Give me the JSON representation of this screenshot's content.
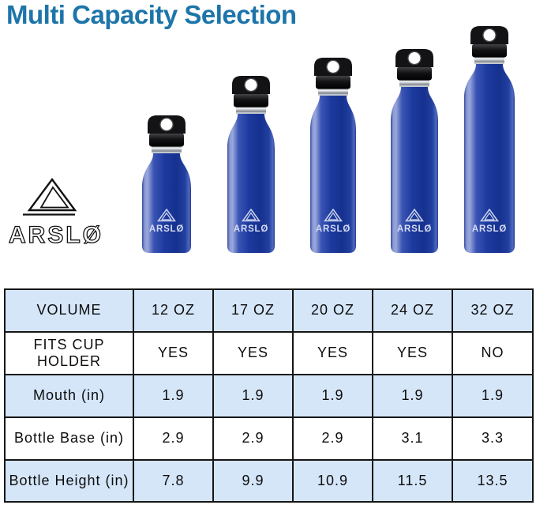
{
  "title": "Multi Capacity Selection",
  "brand": {
    "name": "ARSLØ",
    "logo": "triangle-mountain-icon"
  },
  "bottles": {
    "logo_text": "ARSLØ",
    "items": [
      {
        "volume": "12 OZ"
      },
      {
        "volume": "17 OZ"
      },
      {
        "volume": "20 OZ"
      },
      {
        "volume": "24 OZ"
      },
      {
        "volume": "32 OZ"
      }
    ]
  },
  "chart_data": {
    "type": "table",
    "title": "Multi Capacity Selection",
    "rows": [
      {
        "label": "VOLUME",
        "values": [
          "12 OZ",
          "17 OZ",
          "20 OZ",
          "24 OZ",
          "32 OZ"
        ]
      },
      {
        "label": "FITS CUP HOLDER",
        "values": [
          "YES",
          "YES",
          "YES",
          "YES",
          "NO"
        ]
      },
      {
        "label": "Mouth (in)",
        "values": [
          "1.9",
          "1.9",
          "1.9",
          "1.9",
          "1.9"
        ]
      },
      {
        "label": "Bottle Base (in)",
        "values": [
          "2.9",
          "2.9",
          "2.9",
          "3.1",
          "3.3"
        ]
      },
      {
        "label": "Bottle Height (in)",
        "values": [
          "7.8",
          "9.9",
          "10.9",
          "11.5",
          "13.5"
        ]
      }
    ],
    "layout_hints": {
      "alternating_row_fill": "light blue on rows 1,3,5",
      "grid": "on"
    }
  },
  "colors": {
    "title_text": "#1d75a9",
    "table_row_alt": "#d5e6f9",
    "table_border": "#161616",
    "bottle_blue_dark": "#16318f",
    "bottle_blue_light": "#99a7dc",
    "cap_black": "#0d0d0d",
    "steel_ring": "#c8ccd2",
    "bottle_logo": "#d6dcf2"
  }
}
